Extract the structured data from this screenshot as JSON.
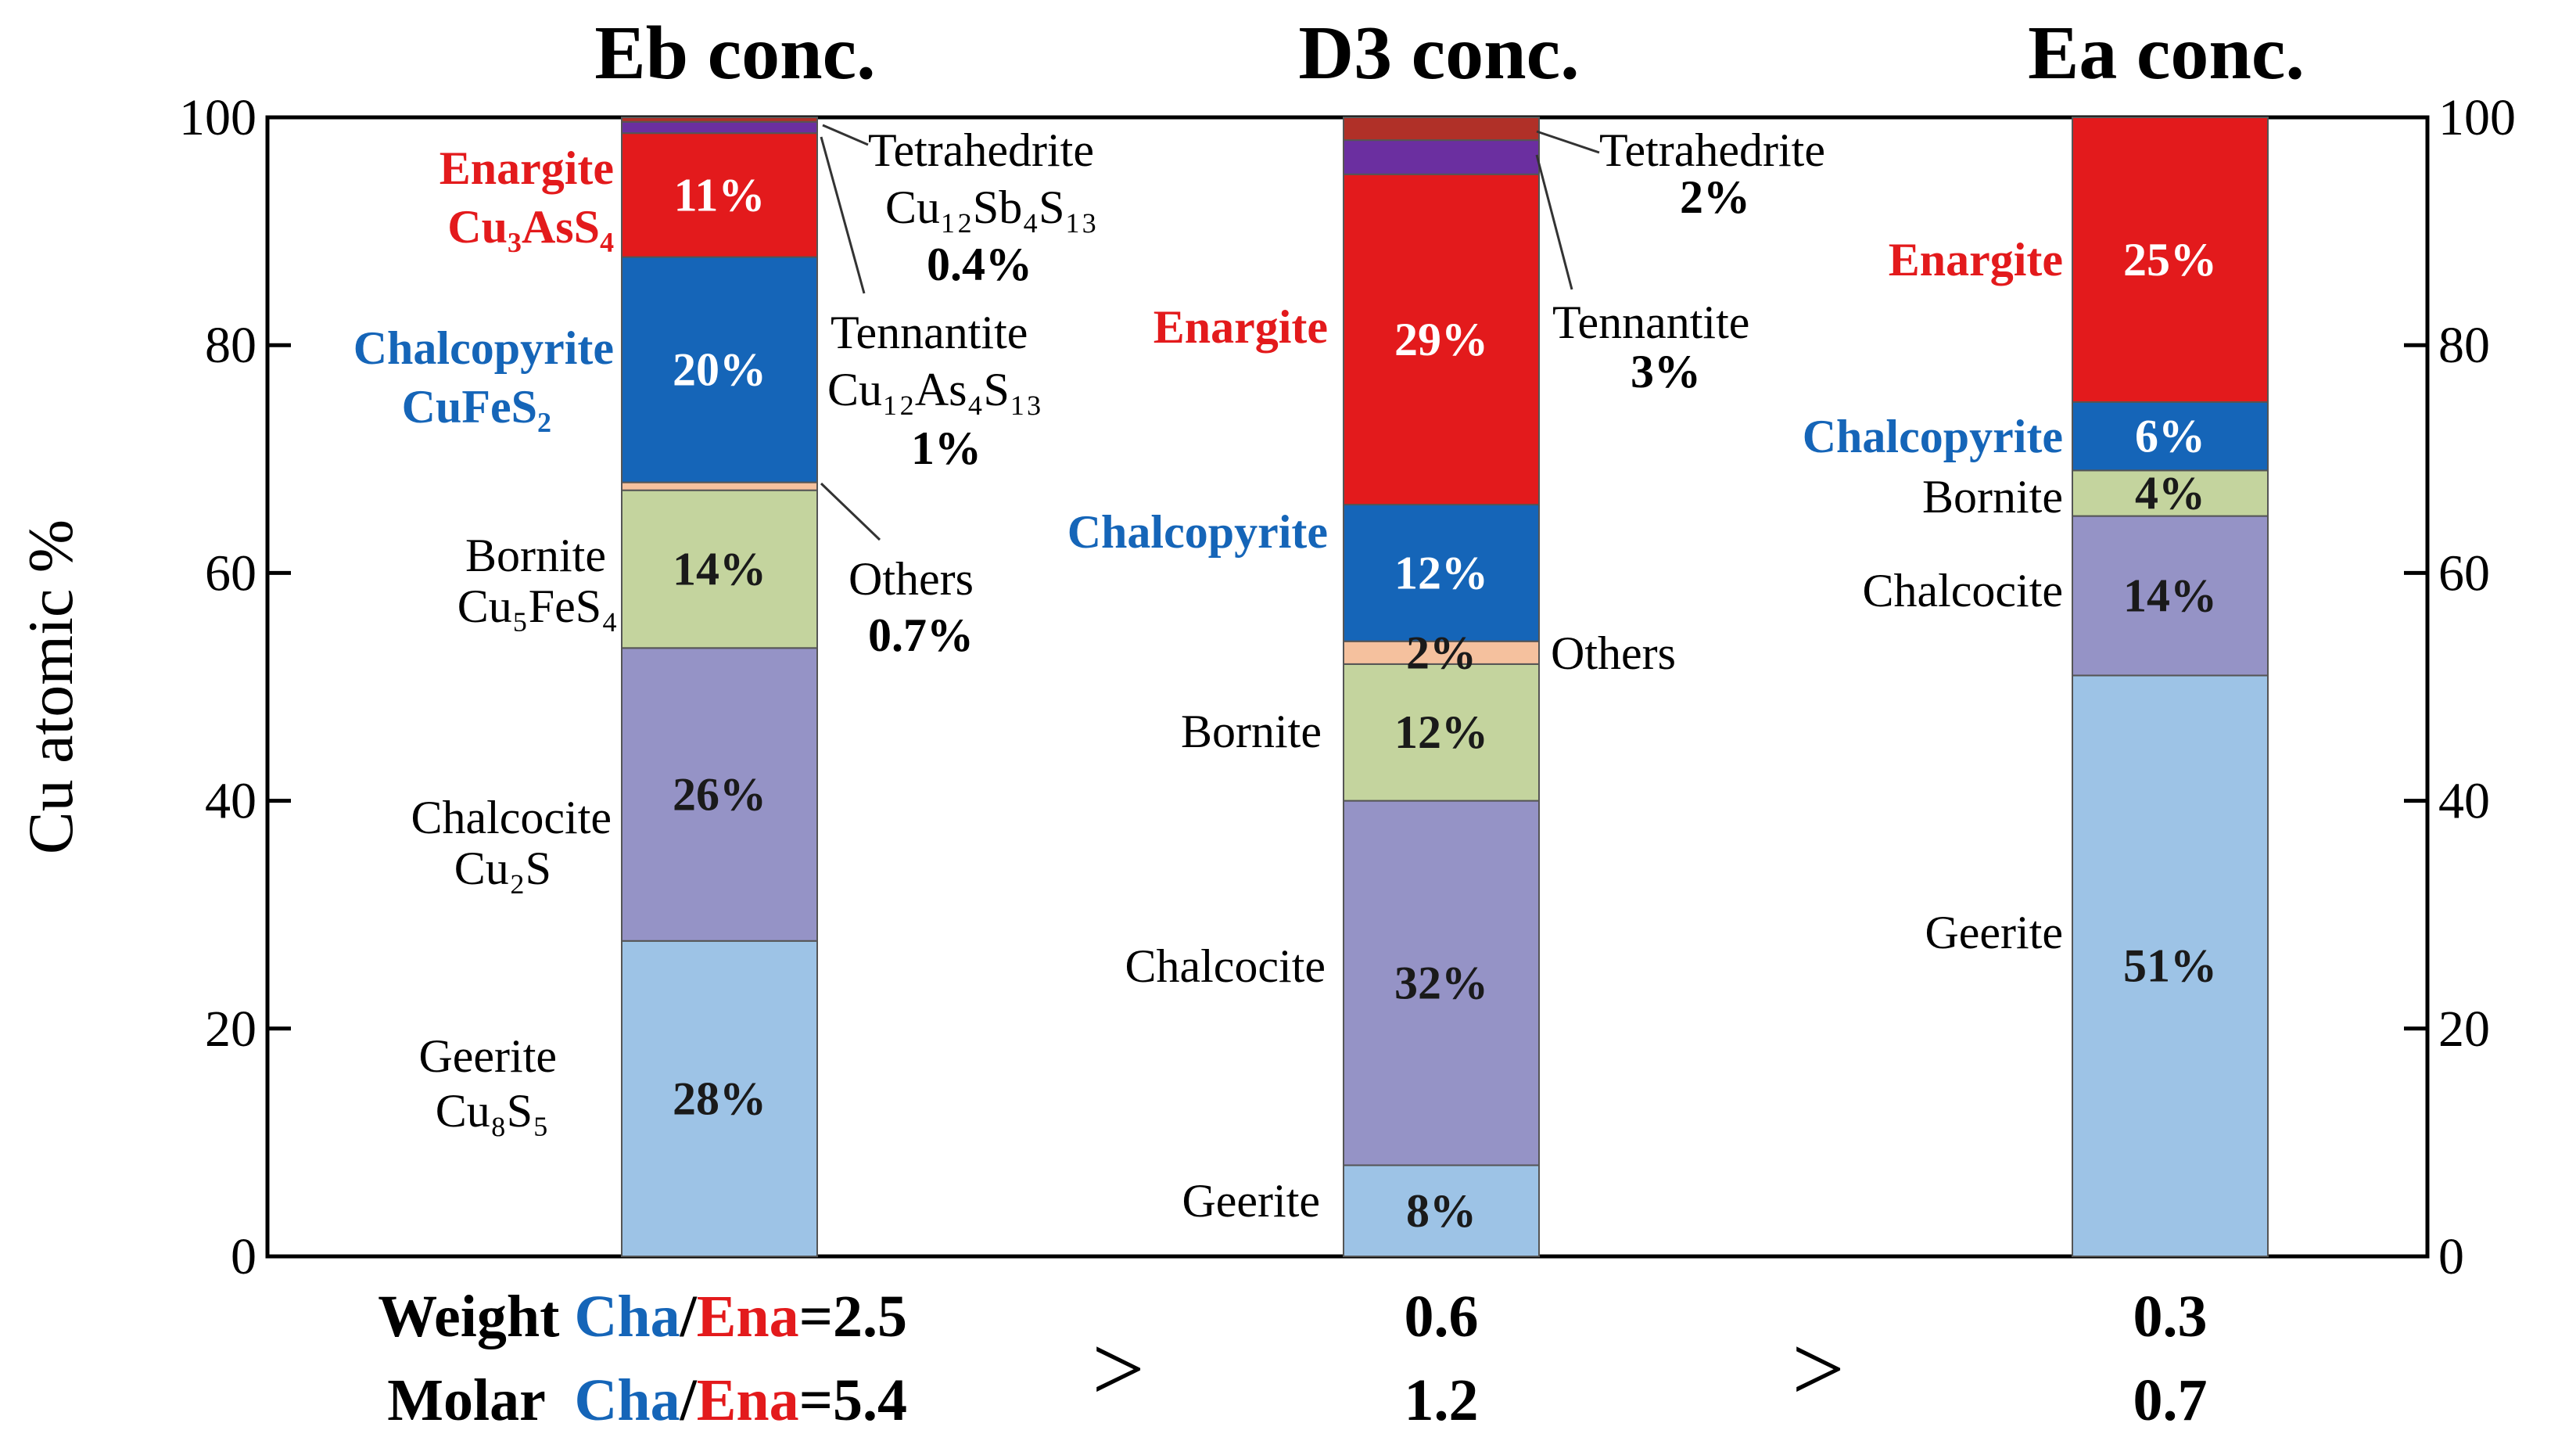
{
  "colors": {
    "Geerite": "#9dc3e6",
    "Chalcocite": "#9593c6",
    "Bornite": "#c4d49e",
    "Others": "#f5c19e",
    "Chalcopyrite": "#1565b8",
    "Enargite": "#e31a1c",
    "Tennantite": "#6b2fa0",
    "Tetrahedrite": "#b03028",
    "cha_text": "#1565b8",
    "ena_text": "#e31a1c"
  },
  "chart_data": {
    "type": "bar",
    "stacked": true,
    "ylabel": "Cu atomic %",
    "ylim": [
      0,
      100
    ],
    "yticks": [
      0,
      20,
      40,
      60,
      80,
      100
    ],
    "yticks_labels": [
      "0",
      "20",
      "40",
      "60",
      "80",
      "100"
    ],
    "categories": [
      "Eb conc.",
      "D3 conc.",
      "Ea conc."
    ],
    "series": [
      {
        "name": "Geerite",
        "values": [
          28,
          8,
          51
        ],
        "labels": [
          "28%",
          "8%",
          "51%"
        ]
      },
      {
        "name": "Chalcocite",
        "values": [
          26,
          32,
          14
        ],
        "labels": [
          "26%",
          "32%",
          "14%"
        ]
      },
      {
        "name": "Bornite",
        "values": [
          14,
          12,
          4
        ],
        "labels": [
          "14%",
          "12%",
          "4%"
        ]
      },
      {
        "name": "Others",
        "values": [
          0.7,
          2,
          0
        ],
        "labels": [
          "",
          "2%",
          ""
        ]
      },
      {
        "name": "Chalcopyrite",
        "values": [
          20,
          12,
          6
        ],
        "labels": [
          "20%",
          "12%",
          "6%"
        ]
      },
      {
        "name": "Enargite",
        "values": [
          11,
          29,
          25
        ],
        "labels": [
          "11%",
          "29%",
          "25%"
        ]
      },
      {
        "name": "Tennantite",
        "values": [
          1,
          3,
          0
        ],
        "labels": [
          "",
          "",
          ""
        ]
      },
      {
        "name": "Tetrahedrite",
        "values": [
          0.4,
          2,
          0
        ],
        "labels": [
          "",
          "",
          ""
        ]
      }
    ]
  },
  "annotations": {
    "eb": {
      "enargite": "Enargite",
      "enargite_formula": "Cu₃AsS₄",
      "chalcopyrite": "Chalcopyrite",
      "chalcopyrite_formula": "CuFeS₂",
      "bornite": "Bornite",
      "bornite_formula": "Cu₅FeS₄",
      "chalcocite": "Chalcocite",
      "chalcocite_formula": "Cu₂S",
      "geerite": "Geerite",
      "geerite_formula": "Cu₈S₅",
      "tetrahedrite": "Tetrahedrite",
      "tetrahedrite_formula": "Cu₁₂Sb₄S₁₃",
      "tetrahedrite_pct": "0.4%",
      "tennantite": "Tennantite",
      "tennantite_formula": "Cu₁₂As₄S₁₃",
      "tennantite_pct": "1%",
      "others": "Others",
      "others_pct": "0.7%"
    },
    "d3": {
      "tetrahedrite": "Tetrahedrite",
      "tetrahedrite_pct": "2%",
      "enargite": "Enargite",
      "tennantite": "Tennantite",
      "tennantite_pct": "3%",
      "chalcopyrite": "Chalcopyrite",
      "others": "Others",
      "bornite": "Bornite",
      "chalcocite": "Chalcocite",
      "geerite": "Geerite"
    },
    "ea": {
      "enargite": "Enargite",
      "chalcopyrite": "Chalcopyrite",
      "bornite": "Bornite",
      "chalcocite": "Chalcocite",
      "geerite": "Geerite"
    }
  },
  "ratios": {
    "weight_label": "Weight ",
    "molar_label": "Molar  ",
    "cha": "Cha",
    "slash": "/",
    "ena": "Ena",
    "eb_weight": "=2.5",
    "eb_molar": "=5.4",
    "d3_weight": "0.6",
    "d3_molar": "1.2",
    "ea_weight": "0.3",
    "ea_molar": "0.7",
    "gt": ">"
  }
}
